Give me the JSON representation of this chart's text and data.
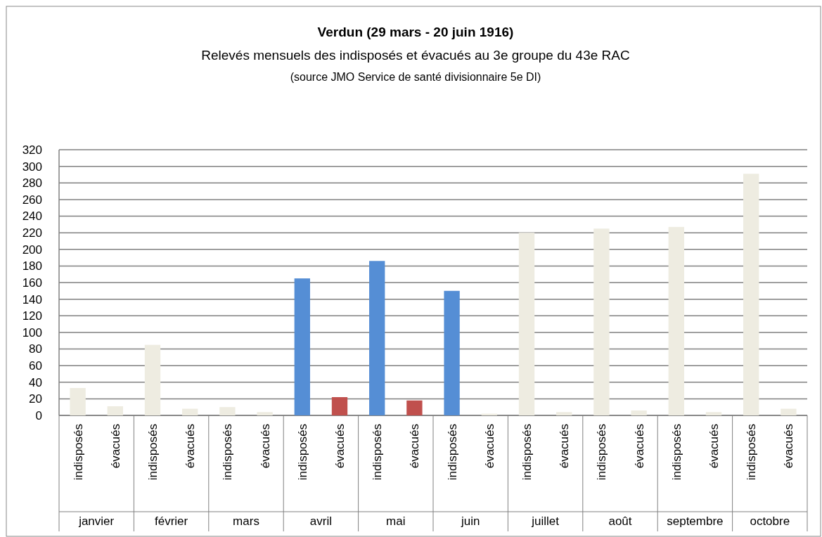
{
  "chart_data": {
    "type": "bar",
    "title": "Verdun (29  mars - 20 juin 1916)",
    "subtitle": "Relevés mensuels des  indisposés et évacués au 3e groupe du 43e RAC",
    "annotations": [
      "(source JMO  Service de santé divisionnaire 5e DI)",
      "janvier",
      "février",
      "mars",
      "avril",
      "mai",
      "juin",
      "juillet",
      "août",
      "septembre",
      "octobre"
    ],
    "categories": [
      "indisposés",
      "évacués",
      "indisposés",
      "évacués",
      "indisposés",
      "évacués",
      "indisposés",
      "évacués",
      "indisposés",
      "évacués",
      "indisposés",
      "évacués",
      "indisposés",
      "évacués",
      "indisposés",
      "évacués",
      "indisposés",
      "évacués",
      "indisposés",
      "évacués"
    ],
    "values": [
      33,
      11,
      85,
      8,
      10,
      4,
      165,
      22,
      186,
      18,
      150,
      2,
      220,
      4,
      225,
      6,
      227,
      4,
      291,
      8
    ],
    "colors": [
      "#eeece1",
      "#eeece1",
      "#eeece1",
      "#eeece1",
      "#eeece1",
      "#eeece1",
      "#558ed5",
      "#c0504d",
      "#558ed5",
      "#c0504d",
      "#558ed5",
      "#eeece1",
      "#eeece1",
      "#eeece1",
      "#eeece1",
      "#eeece1",
      "#eeece1",
      "#eeece1",
      "#eeece1",
      "#eeece1"
    ],
    "ylim": [
      0,
      320
    ],
    "yticks": [
      0,
      20,
      40,
      60,
      80,
      100,
      120,
      140,
      160,
      180,
      200,
      220,
      240,
      260,
      280,
      300,
      320
    ],
    "grid": "y"
  }
}
